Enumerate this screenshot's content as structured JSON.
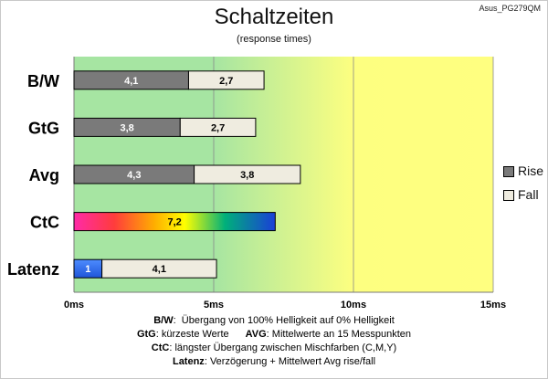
{
  "chart_data": {
    "type": "bar",
    "orientation": "horizontal",
    "stacked": true,
    "title": "Schaltzeiten",
    "subtitle": "(response times)",
    "watermark": "Asus_PG279QM",
    "categories": [
      "B/W",
      "GtG",
      "Avg",
      "CtC",
      "Latenz"
    ],
    "series": [
      {
        "name": "Rise",
        "values": [
          4.1,
          3.8,
          4.3,
          7.2,
          1
        ],
        "color": "#7a7a7a"
      },
      {
        "name": "Fall",
        "values": [
          2.7,
          2.7,
          3.8,
          null,
          4.1
        ],
        "color": "#efece0"
      }
    ],
    "bar_labels": {
      "rise": [
        "4,1",
        "3,8",
        "4,3",
        "7,2",
        "1"
      ],
      "fall": [
        "2,7",
        "2,7",
        "3,8",
        "",
        "4,1"
      ]
    },
    "special_bars": {
      "CtC": "rainbow-gradient",
      "Latenz": "blue-rise"
    },
    "xlim": [
      0,
      15
    ],
    "xticks": [
      0,
      5,
      10,
      15
    ],
    "xtick_labels": [
      "0ms",
      "5ms",
      "10ms",
      "15ms"
    ],
    "background_zones": [
      {
        "from": 0,
        "to": 5,
        "color": "#a4e4a0"
      },
      {
        "from": 5,
        "to": 10,
        "color": "gradient green-to-yellow"
      },
      {
        "from": 10,
        "to": 15,
        "color": "#ffff80"
      }
    ],
    "grid": true,
    "legend": {
      "position": "right",
      "items": [
        "Rise",
        "Fall"
      ]
    }
  },
  "notes": [
    {
      "key": "B/W",
      "sep": ":",
      "text": "Übergang von 100% Helligkeit auf 0% Helligkeit"
    },
    {
      "key": "GtG",
      "sep": ":",
      "text": "kürzeste Werte",
      "key2": "AVG",
      "text2": "Mittelwerte an 15 Messpunkten"
    },
    {
      "key": "CtC",
      "sep": ":",
      "text": "längster Übergang zwischen Mischfarben (C,M,Y)"
    },
    {
      "key": "Latenz",
      "sep": ":",
      "text": "Verzögerung + Mittelwert Avg rise/fall"
    }
  ]
}
